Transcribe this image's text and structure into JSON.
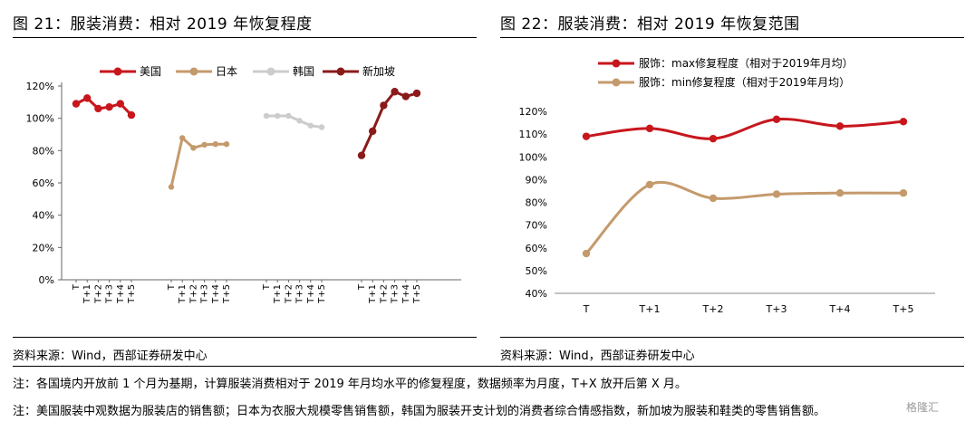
{
  "left_figure": {
    "title": "图 21：服装消费：相对 2019 年恢复程度",
    "source": "资料来源：Wind，西部证券研发中心"
  },
  "right_figure": {
    "title": "图 22：服装消费：相对 2019 年恢复范围",
    "source": "资料来源：Wind，西部证券研发中心"
  },
  "notes": [
    "注：各国境内开放前 1 个月为基期，计算服装消费相对于 2019 年月均水平的修复程度，数据频率为月度，T+X 放开后第 X 月。",
    "注：美国服装中观数据为服装店的销售额；日本为衣服大规模零售销售额，韩国为服装开支计划的消费者综合情感指数，新加坡为服装和鞋类的零售销售额。"
  ],
  "watermark": "格隆汇",
  "chart_data": [
    {
      "type": "line",
      "categories": [
        "T",
        "T+1",
        "T+2",
        "T+3",
        "T+4",
        "T+5"
      ],
      "y_tick_labels": [
        "0%",
        "20%",
        "40%",
        "60%",
        "80%",
        "100%",
        "120%"
      ],
      "ylim": [
        0,
        120
      ],
      "grid": false,
      "legend": "top",
      "series": [
        {
          "name": "美国",
          "color": "#c8161d",
          "marker": true,
          "values": [
            109,
            112.5,
            106,
            107,
            109,
            102
          ]
        },
        {
          "name": "日本",
          "color": "#c49a6c",
          "marker": false,
          "values": [
            57.5,
            87.8,
            81.7,
            83.6,
            84,
            84
          ]
        },
        {
          "name": "韩国",
          "color": "#cccccc",
          "marker": false,
          "values": [
            101.5,
            101.5,
            101.5,
            98.5,
            95.5,
            94.5
          ]
        },
        {
          "name": "新加坡",
          "color": "#8b1a1a",
          "marker": true,
          "values": [
            77,
            92,
            108,
            116.5,
            113.5,
            115.5
          ]
        }
      ]
    },
    {
      "type": "line",
      "categories": [
        "T",
        "T+1",
        "T+2",
        "T+3",
        "T+4",
        "T+5"
      ],
      "y_tick_labels": [
        "40%",
        "50%",
        "60%",
        "70%",
        "80%",
        "90%",
        "100%",
        "110%",
        "120%"
      ],
      "ylim": [
        40,
        120
      ],
      "grid": false,
      "legend": "top-left",
      "series": [
        {
          "name": "服饰：max修复程度（相对于2019年月均）",
          "color": "#c8161d",
          "values": [
            109,
            112.5,
            108,
            116.5,
            113.5,
            115.5
          ]
        },
        {
          "name": "服饰：min修复程度（相对于2019年月均）",
          "color": "#c49a6c",
          "values": [
            57.5,
            87.8,
            81.8,
            83.6,
            84.1,
            84.1
          ]
        }
      ]
    }
  ]
}
